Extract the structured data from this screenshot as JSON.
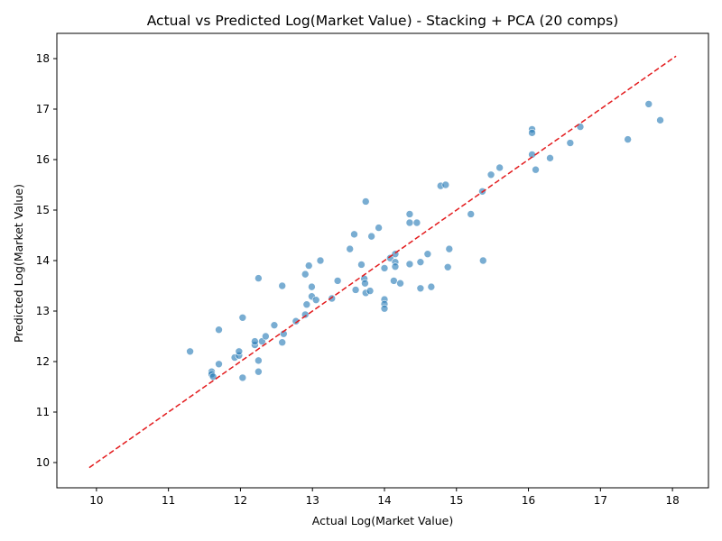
{
  "chart_data": {
    "type": "scatter",
    "title": "Actual vs Predicted Log(Market Value) - Stacking + PCA (20 comps)",
    "xlabel": "Actual Log(Market Value)",
    "ylabel": "Predicted Log(Market Value)",
    "xlim": [
      9.45,
      18.5
    ],
    "ylim": [
      9.5,
      18.5
    ],
    "xticks": [
      10,
      11,
      12,
      13,
      14,
      15,
      16,
      17,
      18
    ],
    "yticks": [
      10,
      11,
      12,
      13,
      14,
      15,
      16,
      17,
      18
    ],
    "grid": false,
    "point_color": "#1f77b4",
    "reference_line": {
      "from": [
        9.9,
        9.9
      ],
      "to": [
        18.05,
        18.05
      ],
      "color": "#e31a1c",
      "style": "dashed"
    },
    "points": [
      [
        11.3,
        12.2
      ],
      [
        11.6,
        11.8
      ],
      [
        11.6,
        11.75
      ],
      [
        11.62,
        11.7
      ],
      [
        11.7,
        11.95
      ],
      [
        11.7,
        12.63
      ],
      [
        11.92,
        12.08
      ],
      [
        11.98,
        12.12
      ],
      [
        11.98,
        12.2
      ],
      [
        12.03,
        11.68
      ],
      [
        12.03,
        12.87
      ],
      [
        12.2,
        12.33
      ],
      [
        12.2,
        12.4
      ],
      [
        12.25,
        12.02
      ],
      [
        12.25,
        11.8
      ],
      [
        12.25,
        13.65
      ],
      [
        12.3,
        12.4
      ],
      [
        12.35,
        12.5
      ],
      [
        12.47,
        12.72
      ],
      [
        12.58,
        12.38
      ],
      [
        12.6,
        12.55
      ],
      [
        12.58,
        13.5
      ],
      [
        12.77,
        12.8
      ],
      [
        12.9,
        12.93
      ],
      [
        12.9,
        13.73
      ],
      [
        12.92,
        13.13
      ],
      [
        12.95,
        13.9
      ],
      [
        12.99,
        13.48
      ],
      [
        12.99,
        13.29
      ],
      [
        13.05,
        13.22
      ],
      [
        13.11,
        14.0
      ],
      [
        13.27,
        13.25
      ],
      [
        13.35,
        13.6
      ],
      [
        13.52,
        14.23
      ],
      [
        13.58,
        14.52
      ],
      [
        13.6,
        13.42
      ],
      [
        13.68,
        13.92
      ],
      [
        13.72,
        13.64
      ],
      [
        13.73,
        13.55
      ],
      [
        13.74,
        13.36
      ],
      [
        13.74,
        15.17
      ],
      [
        13.8,
        13.4
      ],
      [
        13.82,
        14.48
      ],
      [
        13.92,
        14.65
      ],
      [
        14.0,
        13.85
      ],
      [
        14.0,
        13.23
      ],
      [
        14.0,
        13.14
      ],
      [
        14.0,
        13.05
      ],
      [
        14.08,
        14.05
      ],
      [
        14.13,
        13.6
      ],
      [
        14.15,
        14.13
      ],
      [
        14.15,
        13.97
      ],
      [
        14.15,
        13.88
      ],
      [
        14.22,
        13.55
      ],
      [
        14.35,
        14.92
      ],
      [
        14.35,
        14.75
      ],
      [
        14.35,
        13.93
      ],
      [
        14.45,
        14.75
      ],
      [
        14.5,
        13.97
      ],
      [
        14.5,
        13.45
      ],
      [
        14.6,
        14.13
      ],
      [
        14.65,
        13.48
      ],
      [
        14.78,
        15.48
      ],
      [
        14.85,
        15.5
      ],
      [
        14.88,
        13.87
      ],
      [
        14.9,
        14.23
      ],
      [
        15.2,
        14.92
      ],
      [
        15.36,
        15.37
      ],
      [
        15.37,
        14.0
      ],
      [
        15.48,
        15.7
      ],
      [
        15.6,
        15.84
      ],
      [
        16.05,
        16.6
      ],
      [
        16.05,
        16.53
      ],
      [
        16.05,
        16.1
      ],
      [
        16.1,
        15.8
      ],
      [
        16.3,
        16.03
      ],
      [
        16.58,
        16.33
      ],
      [
        16.72,
        16.65
      ],
      [
        17.38,
        16.4
      ],
      [
        17.67,
        17.1
      ],
      [
        17.83,
        16.78
      ]
    ]
  }
}
